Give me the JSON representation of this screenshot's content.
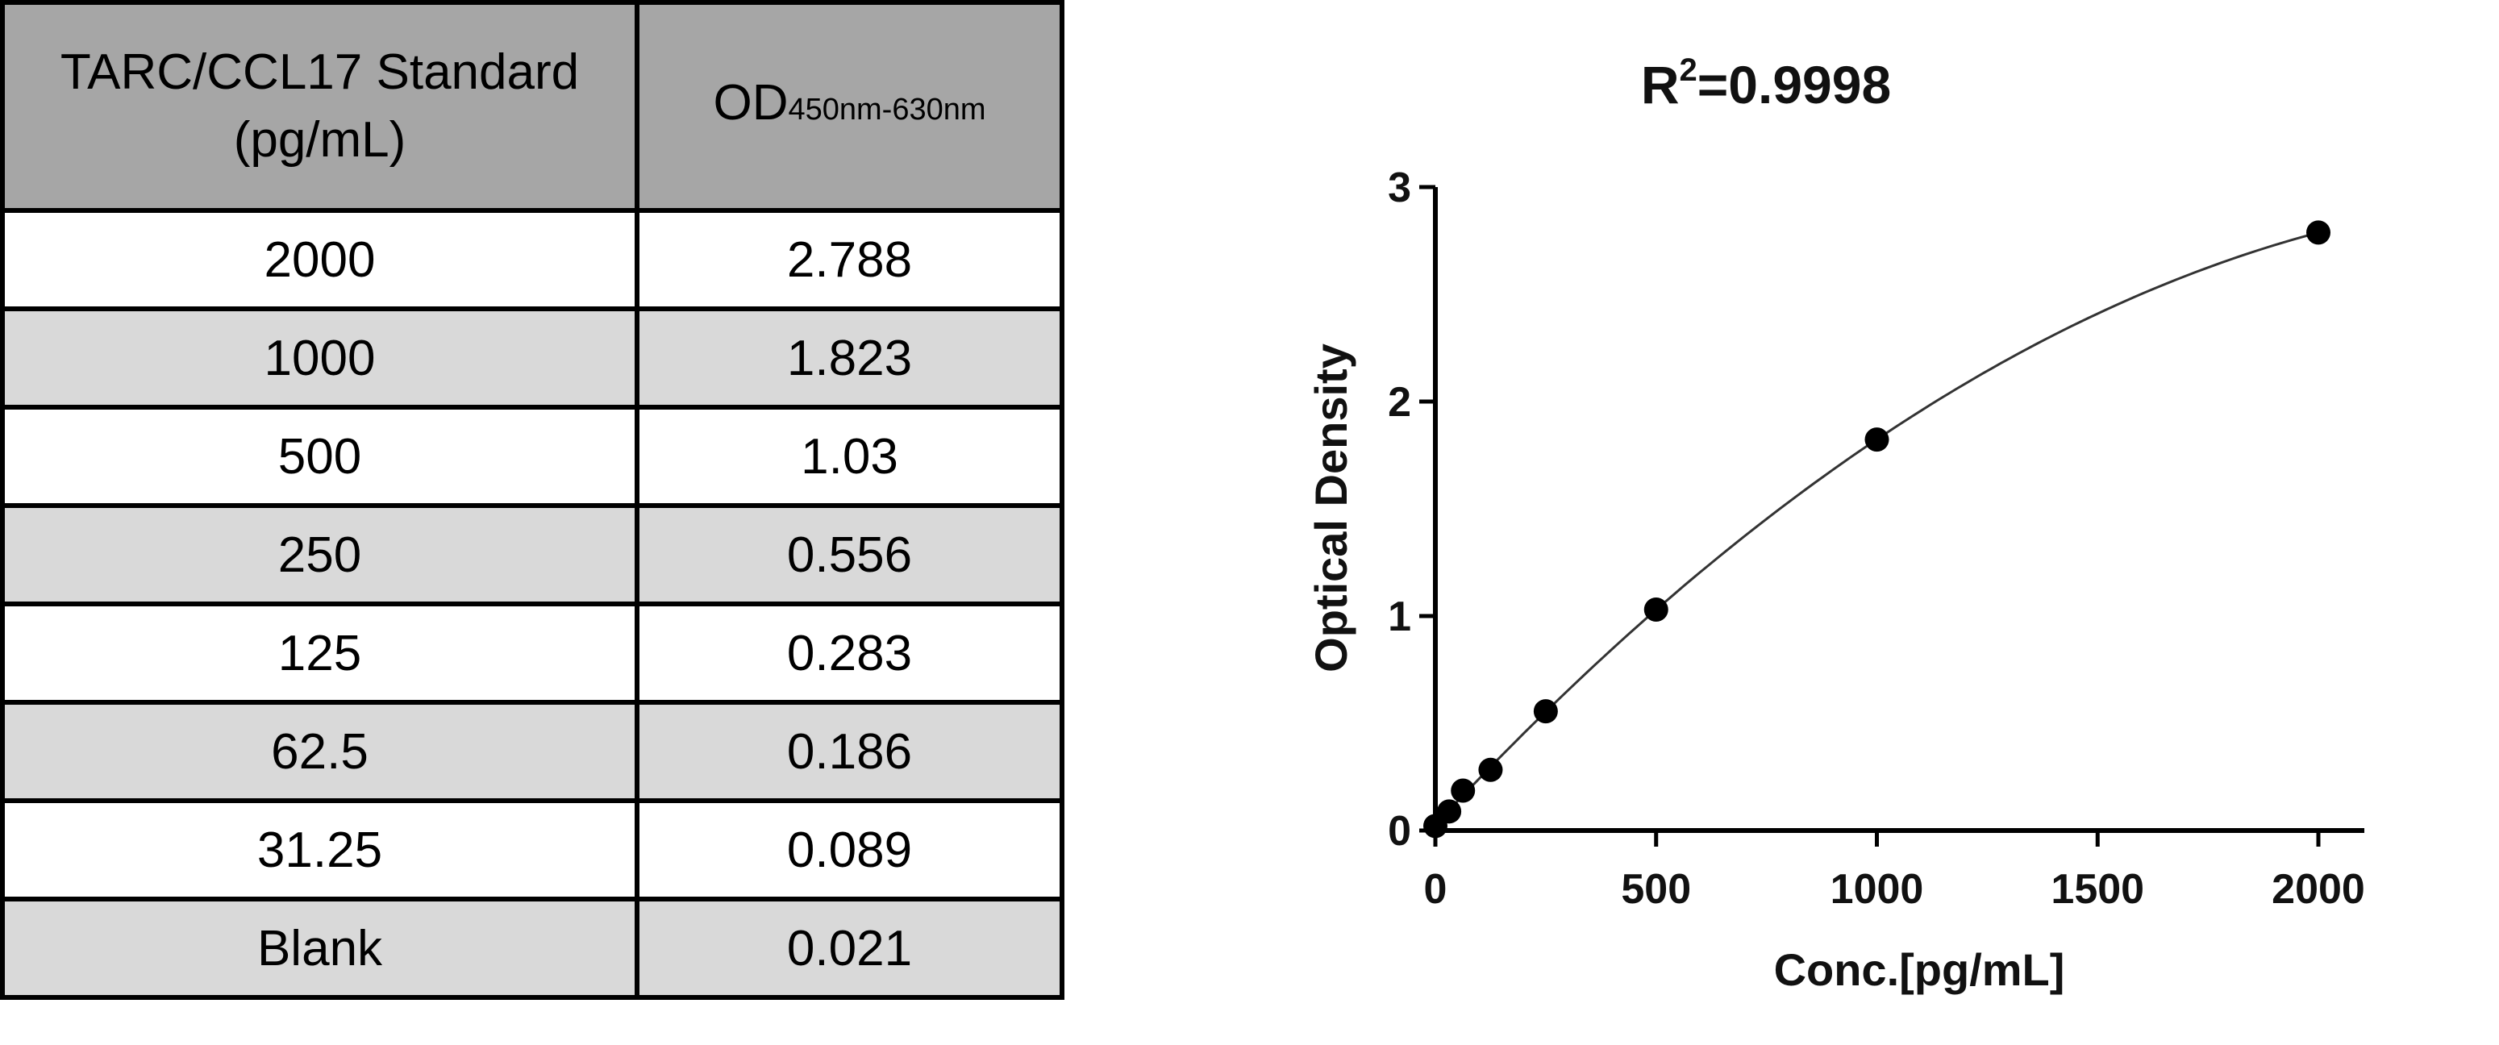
{
  "table": {
    "header_col1_line1": "TARC/CCL17 Standard",
    "header_col1_line2": "(pg/mL)",
    "header_col2_main": "OD",
    "header_col2_sub": "450nm-630nm",
    "rows": [
      {
        "std": "2000",
        "od": "2.788"
      },
      {
        "std": "1000",
        "od": "1.823"
      },
      {
        "std": "500",
        "od": "1.03"
      },
      {
        "std": "250",
        "od": "0.556"
      },
      {
        "std": "125",
        "od": "0.283"
      },
      {
        "std": "62.5",
        "od": "0.186"
      },
      {
        "std": "31.25",
        "od": "0.089"
      },
      {
        "std": "Blank",
        "od": "0.021"
      }
    ]
  },
  "chart_data": {
    "type": "scatter",
    "title_prefix": "R",
    "title_sup": "2",
    "title_value": "=0.9998",
    "xlabel": "Conc.[pg/mL]",
    "ylabel": "Optical Density",
    "xlim": [
      0,
      2000
    ],
    "ylim": [
      0,
      3
    ],
    "xticks": [
      0,
      500,
      1000,
      1500,
      2000
    ],
    "yticks": [
      0,
      1,
      2,
      3
    ],
    "series": [
      {
        "x": [
          0,
          31.25,
          62.5,
          125,
          250,
          500,
          1000,
          2000
        ],
        "y": [
          0.021,
          0.089,
          0.186,
          0.283,
          0.556,
          1.03,
          1.823,
          2.788
        ]
      }
    ],
    "fit_curve": true,
    "colors": {
      "points": "#000000",
      "curve": "#333333",
      "axes": "#000000"
    }
  }
}
